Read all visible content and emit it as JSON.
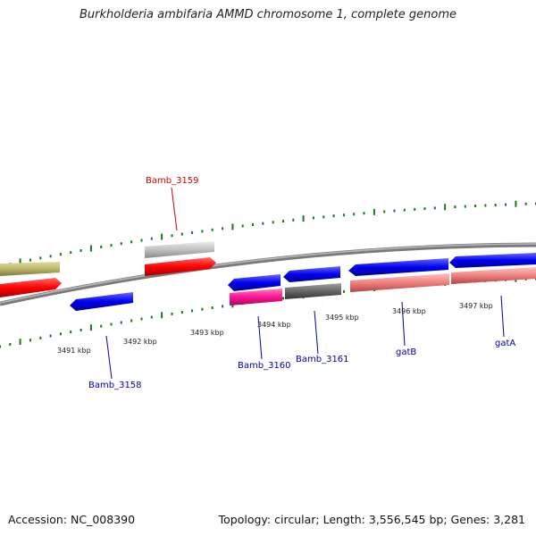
{
  "title": "Burkholderia ambifaria AMMD chromosome 1, complete genome",
  "footer": {
    "accession": "Accession: NC_008390",
    "topology": "Topology: circular; Length: 3,556,545 bp; Genes: 3,281"
  },
  "scale_labels": [
    "3491 kbp",
    "3492 kbp",
    "3493 kbp",
    "3494 kbp",
    "3495 kbp",
    "3496 kbp",
    "3497 kbp"
  ],
  "gene_labels": [
    {
      "name": "Bamb_3159",
      "color": "#cc0000"
    },
    {
      "name": "Bamb_3158",
      "color": "#0000aa"
    },
    {
      "name": "Bamb_3160",
      "color": "#0000aa"
    },
    {
      "name": "Bamb_3161",
      "color": "#0000aa"
    },
    {
      "name": "gatB",
      "color": "#0000aa"
    },
    {
      "name": "gatA",
      "color": "#0000aa"
    }
  ],
  "colors": {
    "backbone": "#888888",
    "tick": "#1a7a1a",
    "red": "#ff0000",
    "blue": "#0000ee",
    "olive": "#bdb76b",
    "lightgray": "#c0c0c0",
    "magenta": "#ff1493",
    "darkgray": "#666666",
    "salmon": "#f08080"
  }
}
